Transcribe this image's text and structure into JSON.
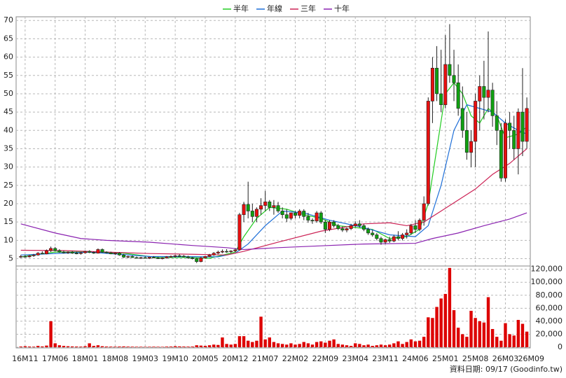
{
  "chart_data": {
    "type": "candlestick",
    "xlim": [
      -1.1,
      118.8
    ],
    "xticks": [
      {
        "value": 1,
        "label": "16M11"
      },
      {
        "value": 8,
        "label": "17M06"
      },
      {
        "value": 15,
        "label": "18M01"
      },
      {
        "value": 22,
        "label": "18M08"
      },
      {
        "value": 29,
        "label": "19M03"
      },
      {
        "value": 36,
        "label": "19M10"
      },
      {
        "value": 43,
        "label": "20M05"
      },
      {
        "value": 50,
        "label": "20M12"
      },
      {
        "value": 57,
        "label": "21M07"
      },
      {
        "value": 64,
        "label": "22M02"
      },
      {
        "value": 71,
        "label": "22M09"
      },
      {
        "value": 78,
        "label": "23M04"
      },
      {
        "value": 85,
        "label": "23M11"
      },
      {
        "value": 92,
        "label": "24M06"
      },
      {
        "value": 99,
        "label": "25M01"
      },
      {
        "value": 106,
        "label": "25M08"
      },
      {
        "value": 113,
        "label": "26M03"
      },
      {
        "value": 119,
        "label": "26M09"
      }
    ],
    "ylim": [
      3,
      71
    ],
    "yticks": [
      5,
      10,
      15,
      20,
      25,
      30,
      35,
      40,
      45,
      50,
      55,
      60,
      65,
      70
    ],
    "y2lim": [
      0,
      125000
    ],
    "y2ticks": [
      0,
      {
        "value": 20000,
        "label": "20,000"
      },
      {
        "value": 40000,
        "label": "40,000"
      },
      {
        "value": 60000,
        "label": "60,000"
      },
      {
        "value": 80000,
        "label": "80,000"
      },
      {
        "value": 100000,
        "label": "100,000"
      },
      {
        "value": 120000,
        "label": "120,000"
      }
    ],
    "grid": true,
    "up_color": "#e81010",
    "down_color": "#10a010",
    "volume_color": "#dd0000",
    "open": [
      5.5,
      5.6,
      5.5,
      5.8,
      6,
      6.5,
      6.3,
      7.2,
      7.8,
      7.2,
      6.8,
      6.6,
      6.8,
      6.5,
      6.4,
      6.6,
      7,
      6.7,
      6.5,
      7.5,
      6.8,
      6.6,
      6.3,
      6.5,
      6,
      5.4,
      5.6,
      5.3,
      5.2,
      5.3,
      5.1,
      5.4,
      5.2,
      5,
      5.2,
      5.5,
      5.6,
      5.8,
      5.7,
      5.5,
      5.2,
      5,
      4.2,
      5.2,
      5.6,
      6,
      6.5,
      6.8,
      7,
      6.9,
      7.1,
      7.4,
      17,
      19.8,
      18,
      16.5,
      18.5,
      19.5,
      20.5,
      19,
      19.5,
      18,
      17,
      16,
      17.5,
      16.8,
      18,
      16.5,
      15.5,
      15.3,
      17.5,
      15,
      13,
      15,
      14,
      13.2,
      12.8,
      13.2,
      14,
      14.5,
      14,
      13,
      12,
      11.5,
      10.5,
      9.5,
      10.2,
      9.8,
      11,
      10.5,
      11.5,
      12,
      14,
      13,
      15.5,
      20,
      48,
      57,
      50,
      47,
      58,
      55,
      53,
      46,
      40,
      34,
      37,
      48,
      52,
      49,
      51,
      44,
      40,
      27,
      42,
      40,
      35,
      45,
      37
    ],
    "high": [
      6,
      6,
      6,
      6.3,
      6.8,
      7,
      7.5,
      8.3,
      8.2,
      7.6,
      7.2,
      7,
      7.1,
      6.9,
      6.8,
      7.2,
      7.3,
      7,
      7.8,
      7.8,
      7,
      6.9,
      6.7,
      6.8,
      6.3,
      5.8,
      5.9,
      5.6,
      5.5,
      5.6,
      5.5,
      5.7,
      5.5,
      5.4,
      5.7,
      5.9,
      6.1,
      6.2,
      6,
      5.8,
      5.5,
      5.2,
      5.5,
      5.8,
      6.3,
      6.8,
      7.2,
      7.5,
      7.6,
      7.3,
      7.8,
      17.5,
      20.5,
      26,
      20,
      19,
      21.5,
      23.5,
      21,
      21,
      20.5,
      19,
      18.5,
      17.5,
      18,
      18.5,
      18.5,
      17.5,
      16,
      18,
      18,
      15.5,
      15.5,
      15.5,
      14.5,
      13.8,
      13.5,
      14.5,
      15.2,
      15.5,
      14.5,
      13.5,
      12.8,
      12,
      11,
      10.5,
      11,
      11.5,
      12.5,
      12,
      13,
      14.5,
      15.5,
      16,
      22,
      49,
      60,
      63,
      62,
      66,
      69,
      62,
      58,
      52,
      45,
      40,
      50,
      55,
      59,
      67,
      53,
      48,
      42,
      43,
      45,
      44,
      46,
      57,
      49
    ],
    "low": [
      5.2,
      5.3,
      5.3,
      5.5,
      5.8,
      6.2,
      6.2,
      6.8,
      7,
      6.6,
      6.4,
      6.3,
      6.3,
      6.2,
      6.1,
      6.4,
      6.5,
      6.3,
      6.4,
      6.6,
      6.4,
      6.2,
      6,
      5.8,
      5.2,
      5.1,
      5.2,
      5,
      4.9,
      5,
      4.9,
      5.1,
      4.9,
      4.8,
      5,
      5.3,
      5.3,
      5.5,
      5.4,
      5,
      4.8,
      3.8,
      4,
      5,
      5.4,
      5.8,
      6.2,
      6.5,
      6.6,
      6.5,
      6.8,
      7.2,
      15,
      16,
      15,
      15,
      17,
      18,
      18,
      17,
      17.5,
      16,
      15,
      15.5,
      16,
      16,
      15.5,
      14.8,
      14.5,
      14.8,
      14.5,
      12,
      12.5,
      13.5,
      12.8,
      12.3,
      12.2,
      12.8,
      13.5,
      13.5,
      12.5,
      11.5,
      11,
      10,
      8.8,
      9,
      9.3,
      9.5,
      10,
      10,
      10.5,
      11.5,
      12,
      12.5,
      14,
      19.5,
      42,
      48,
      45,
      46,
      53,
      48,
      44,
      38,
      32,
      30,
      30,
      40,
      43,
      45,
      41,
      36,
      26,
      26,
      35,
      32,
      28,
      33,
      35
    ],
    "close": [
      5.6,
      5.5,
      5.8,
      6,
      6.5,
      6.3,
      7.2,
      7.8,
      7.2,
      6.8,
      6.6,
      6.8,
      6.5,
      6.4,
      6.6,
      7,
      6.7,
      6.5,
      7.5,
      6.8,
      6.6,
      6.3,
      6.5,
      6,
      5.4,
      5.6,
      5.3,
      5.2,
      5.3,
      5.1,
      5.4,
      5.2,
      5,
      5.2,
      5.5,
      5.6,
      5.8,
      5.7,
      5.5,
      5.2,
      5,
      4.2,
      5.2,
      5.6,
      6,
      6.5,
      6.8,
      7,
      6.9,
      7.1,
      7.4,
      17,
      19.8,
      18,
      16.5,
      18.5,
      19.5,
      20.5,
      19,
      19.5,
      18,
      17,
      16,
      17.5,
      16.8,
      18,
      16.5,
      15.5,
      15.3,
      17.5,
      15,
      13,
      15,
      14,
      13.2,
      12.8,
      13.2,
      14,
      14.5,
      14,
      13,
      12,
      11.5,
      10.5,
      9.5,
      10.2,
      9.8,
      11,
      10.5,
      11.5,
      12,
      14,
      13,
      15.5,
      20,
      48,
      57,
      50,
      47,
      58,
      55,
      53,
      46,
      40,
      34,
      37,
      48,
      52,
      49,
      51,
      44,
      40,
      27,
      42,
      40,
      35,
      45,
      37,
      46
    ],
    "volume": [
      1000,
      1500,
      1000,
      800,
      2000,
      1200,
      2500,
      40000,
      6000,
      3000,
      2000,
      1500,
      1200,
      1000,
      900,
      1500,
      6000,
      2000,
      3000,
      1500,
      1000,
      900,
      800,
      1000,
      1200,
      900,
      800,
      700,
      700,
      600,
      700,
      800,
      700,
      600,
      900,
      1000,
      1500,
      1200,
      1000,
      900,
      1000,
      3000,
      2500,
      2000,
      3000,
      4000,
      3500,
      15000,
      5000,
      4000,
      5000,
      17000,
      17000,
      10000,
      8000,
      10000,
      47000,
      12000,
      15000,
      8000,
      6000,
      5000,
      4000,
      6000,
      4000,
      5000,
      8000,
      6000,
      4000,
      8000,
      9000,
      7000,
      10000,
      12000,
      5000,
      4000,
      3000,
      2000,
      6000,
      5000,
      3000,
      4000,
      2000,
      3000,
      4000,
      3000,
      4000,
      6000,
      9000,
      5000,
      8000,
      12000,
      9000,
      10000,
      16000,
      46000,
      45000,
      62000,
      75000,
      82000,
      122000,
      57000,
      30000,
      20000,
      16000,
      56000,
      45000,
      40000,
      38000,
      77000,
      28000,
      16000,
      10000,
      37000,
      20000,
      18000,
      42000,
      36000,
      24000
    ],
    "series": [
      {
        "name": "半年",
        "color": "#22cc22",
        "x": [
          0,
          8,
          16,
          24,
          32,
          40,
          44,
          50,
          52,
          55,
          58,
          62,
          66,
          70,
          74,
          78,
          82,
          86,
          90,
          93,
          95,
          97,
          99,
          101,
          103,
          105,
          107,
          109,
          111,
          113,
          116,
          118
        ],
        "values": [
          5.5,
          6.8,
          6.8,
          6.5,
          5.3,
          5.3,
          5.1,
          6.8,
          11,
          16,
          19,
          18.5,
          17,
          16,
          14,
          13.5,
          13,
          10.5,
          11,
          13,
          20,
          35,
          50,
          53,
          50,
          44,
          42,
          46,
          44,
          38,
          39,
          41
        ]
      },
      {
        "name": "年線",
        "color": "#1e6fd8",
        "x": [
          0,
          16,
          30,
          46,
          50,
          53,
          57,
          61,
          66,
          72,
          80,
          86,
          92,
          95,
          98,
          101,
          104,
          107,
          110,
          113,
          116,
          118
        ],
        "values": [
          6,
          6.8,
          5.6,
          5.5,
          6.5,
          9,
          14,
          18,
          17.5,
          15.5,
          13.5,
          11.5,
          11,
          14,
          25,
          40,
          47,
          46,
          45,
          42,
          40,
          39
        ]
      },
      {
        "name": "三年",
        "color": "#cc2255",
        "x": [
          0,
          10,
          20,
          30,
          40,
          48,
          52,
          60,
          70,
          80,
          86,
          90,
          94,
          98,
          102,
          106,
          110,
          114,
          118
        ],
        "values": [
          7.3,
          7.2,
          6.8,
          6.4,
          6.2,
          6,
          7,
          9.5,
          12.5,
          14.5,
          14.8,
          14,
          15,
          18,
          21,
          24,
          28,
          31,
          35
        ]
      },
      {
        "name": "十年",
        "color": "#8a22b0",
        "x": [
          0,
          8,
          14,
          20,
          30,
          40,
          48,
          52,
          60,
          70,
          80,
          92,
          96,
          102,
          108,
          114,
          118
        ],
        "values": [
          14.5,
          12,
          10.5,
          10,
          9.5,
          8.6,
          8,
          7.5,
          8,
          8.5,
          9,
          9.2,
          10.5,
          12,
          14,
          15.8,
          17.5
        ]
      }
    ]
  },
  "footer": "資料日期: 09/17  (Goodinfo.tw)"
}
